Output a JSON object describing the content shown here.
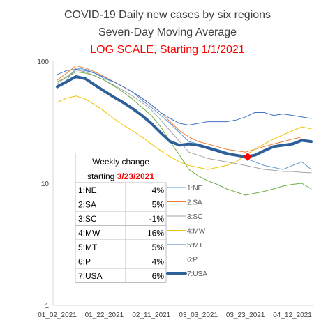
{
  "chart_data": {
    "type": "line",
    "title": "COVID-19 Daily new cases by six regions",
    "subtitle": "Seven-Day Moving Average",
    "scale_note": "LOG SCALE, Starting 1/1/2021",
    "y_scale": "log",
    "ylim": [
      1,
      100
    ],
    "y_ticks": [
      "100",
      "10",
      "1"
    ],
    "x_ticks": [
      "01_02_2021",
      "01_22_2021",
      "02_11_2021",
      "03_03_2021",
      "03_23_2021",
      "04_12_2021"
    ],
    "x_tick_days": [
      1,
      21,
      41,
      61,
      81,
      101
    ],
    "x_range_days": [
      1,
      109
    ],
    "grid": false,
    "legend_position": "right of table",
    "highlight_point": {
      "day": 82,
      "value": 16.5,
      "color": "#ff0000"
    },
    "series": [
      {
        "name": "1:NE",
        "color": "#5b9bd5",
        "width": 1,
        "x": [
          1,
          5,
          9,
          13,
          17,
          21,
          25,
          29,
          33,
          37,
          41,
          45,
          49,
          53,
          57,
          61,
          65,
          69,
          73,
          77,
          81,
          85,
          89,
          93,
          97,
          101,
          105,
          109
        ],
        "values": [
          60,
          70,
          88,
          86,
          80,
          72,
          68,
          62,
          56,
          48,
          42,
          36,
          31,
          26,
          22,
          21,
          20,
          19,
          18,
          17,
          16,
          15,
          14,
          13.5,
          13,
          14,
          15,
          13
        ]
      },
      {
        "name": "2:SA",
        "color": "#ed7d31",
        "width": 1,
        "x": [
          1,
          5,
          9,
          13,
          17,
          21,
          25,
          29,
          33,
          37,
          41,
          45,
          49,
          53,
          57,
          61,
          65,
          69,
          73,
          77,
          81,
          85,
          89,
          93,
          97,
          101,
          105,
          109
        ],
        "values": [
          70,
          80,
          92,
          88,
          82,
          75,
          68,
          62,
          56,
          50,
          44,
          38,
          32,
          27,
          24,
          22,
          21,
          20,
          19,
          18.5,
          18,
          19,
          20,
          21,
          22,
          23,
          24,
          24
        ]
      },
      {
        "name": "3:SC",
        "color": "#a5a5a5",
        "width": 1,
        "x": [
          1,
          5,
          9,
          13,
          17,
          21,
          25,
          29,
          33,
          37,
          41,
          45,
          49,
          53,
          57,
          61,
          65,
          69,
          73,
          77,
          81,
          85,
          89,
          93,
          97,
          101,
          105,
          109
        ],
        "values": [
          65,
          75,
          85,
          82,
          76,
          70,
          64,
          58,
          52,
          46,
          40,
          33,
          27,
          22,
          18,
          17,
          16,
          15.5,
          15,
          14.5,
          14,
          13.5,
          13,
          12.8,
          12.5,
          12.5,
          12.3,
          12.2
        ]
      },
      {
        "name": "4:MW",
        "color": "#f2c200",
        "width": 1,
        "x": [
          1,
          5,
          9,
          13,
          17,
          21,
          25,
          29,
          33,
          37,
          41,
          45,
          49,
          53,
          57,
          61,
          65,
          69,
          73,
          77,
          81,
          85,
          89,
          93,
          97,
          101,
          105,
          109
        ],
        "values": [
          46,
          50,
          52,
          49,
          44,
          39,
          34,
          30,
          27,
          24,
          21,
          18.5,
          16.5,
          15,
          14,
          13.5,
          13,
          13.5,
          14,
          15,
          17,
          19,
          21,
          23,
          25,
          27,
          29,
          28
        ]
      },
      {
        "name": "5:MT",
        "color": "#4472c4",
        "width": 1,
        "x": [
          1,
          5,
          9,
          13,
          17,
          21,
          25,
          29,
          33,
          37,
          41,
          45,
          49,
          53,
          57,
          61,
          65,
          69,
          73,
          77,
          81,
          85,
          89,
          93,
          97,
          101,
          105,
          109
        ],
        "values": [
          78,
          84,
          86,
          84,
          80,
          74,
          68,
          62,
          56,
          50,
          44,
          38,
          34,
          31,
          30,
          31,
          32,
          32,
          32,
          33,
          35,
          38,
          38,
          36,
          37,
          36,
          35,
          34
        ]
      },
      {
        "name": "6:P",
        "color": "#70ad47",
        "width": 1,
        "x": [
          1,
          5,
          9,
          13,
          17,
          21,
          25,
          29,
          33,
          37,
          41,
          45,
          49,
          53,
          57,
          61,
          65,
          69,
          73,
          77,
          81,
          85,
          89,
          93,
          97,
          101,
          105,
          109
        ],
        "values": [
          68,
          74,
          82,
          80,
          76,
          70,
          63,
          56,
          49,
          42,
          36,
          29,
          22,
          17,
          13,
          11.5,
          10.5,
          9.8,
          9,
          8.5,
          8,
          8.3,
          8.6,
          9,
          9.5,
          9.8,
          10,
          9
        ]
      },
      {
        "name": "7:USA",
        "color": "#2e5f99",
        "width": 4,
        "x": [
          1,
          5,
          9,
          13,
          17,
          21,
          25,
          29,
          33,
          37,
          41,
          45,
          49,
          53,
          57,
          61,
          65,
          69,
          73,
          77,
          81,
          85,
          89,
          93,
          97,
          101,
          105,
          109
        ],
        "values": [
          62,
          68,
          75,
          72,
          64,
          57,
          51,
          46,
          41,
          36,
          31,
          26,
          22,
          20.5,
          21,
          20.5,
          19.5,
          18.5,
          17.5,
          17,
          16.5,
          17,
          18.5,
          20,
          20.5,
          21,
          22.5,
          22
        ]
      }
    ],
    "table": {
      "header_line1": "Weekly change",
      "header_line2_prefix": "starting ",
      "header_line2_date": "3/23/2021",
      "rows": [
        {
          "label": "1:NE",
          "change": "4%"
        },
        {
          "label": "2:SA",
          "change": "5%"
        },
        {
          "label": "3:SC",
          "change": "-1%"
        },
        {
          "label": "4:MW",
          "change": "16%"
        },
        {
          "label": "5:MT",
          "change": "5%"
        },
        {
          "label": "6:P",
          "change": "4%"
        },
        {
          "label": "7:USA",
          "change": "6%"
        }
      ]
    }
  }
}
